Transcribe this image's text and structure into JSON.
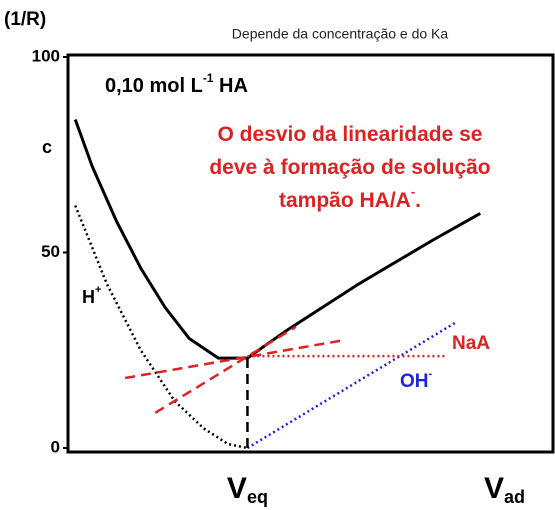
{
  "chart_data": {
    "type": "line",
    "title": "Depende da concentração e do Ka",
    "ylabel": "(1/R)",
    "ylabel2": "c",
    "xlim": [
      0,
      100
    ],
    "ylim": [
      0,
      100
    ],
    "yticks": [
      0,
      50,
      100
    ],
    "grid": false,
    "xlabels": [
      {
        "main": "V",
        "sub": "eq",
        "x": 37
      },
      {
        "main": "V",
        "sub": "ad",
        "x": 90
      }
    ],
    "series": [
      {
        "color": "#000000",
        "style": "solid",
        "x": [
          1.5,
          5,
          10,
          15,
          20,
          25,
          31,
          37,
          45,
          60,
          75,
          85
        ],
        "values": [
          84,
          72,
          58,
          46,
          36,
          28,
          23,
          23,
          30,
          42,
          53,
          60
        ]
      },
      {
        "color": "#000000",
        "style": "dotted",
        "x": [
          1.5,
          8,
          15,
          22,
          28,
          33,
          37
        ],
        "values": [
          62,
          42,
          25,
          12,
          5,
          1,
          0
        ]
      },
      {
        "color": "#2222dd",
        "style": "dotted",
        "x": [
          37,
          79.8
        ],
        "values": [
          0,
          32
        ]
      },
      {
        "color": "#dd2222",
        "style": "dotted",
        "x": [
          37,
          78
        ],
        "values": [
          23.5,
          23.5
        ]
      },
      {
        "color": "#dd2222",
        "style": "dashed",
        "x": [
          11.8,
          57
        ],
        "values": [
          17.9,
          27.6
        ]
      },
      {
        "color": "#dd2222",
        "style": "dashed",
        "x": [
          18,
          47
        ],
        "values": [
          9,
          31
        ]
      },
      {
        "color": "#000000",
        "style": "dashed",
        "x": [
          37,
          37
        ],
        "values": [
          0,
          23
        ]
      }
    ],
    "annotations": [
      {
        "parts": [
          "0,10 mol L",
          "-1",
          " HA"
        ],
        "color": "#000000"
      },
      {
        "parts": [
          "O desvio da linearidade se"
        ],
        "color": "#dd2222"
      },
      {
        "parts": [
          "deve à formação de solução"
        ],
        "color": "#dd2222"
      },
      {
        "parts": [
          "tampão HA/A",
          "-",
          "."
        ],
        "color": "#dd2222"
      },
      {
        "parts": [
          "H",
          "+"
        ],
        "color": "#000000"
      },
      {
        "parts": [
          "NaA"
        ],
        "color": "#dd2222"
      },
      {
        "parts": [
          "OH",
          "-"
        ],
        "color": "#2222dd"
      }
    ]
  }
}
